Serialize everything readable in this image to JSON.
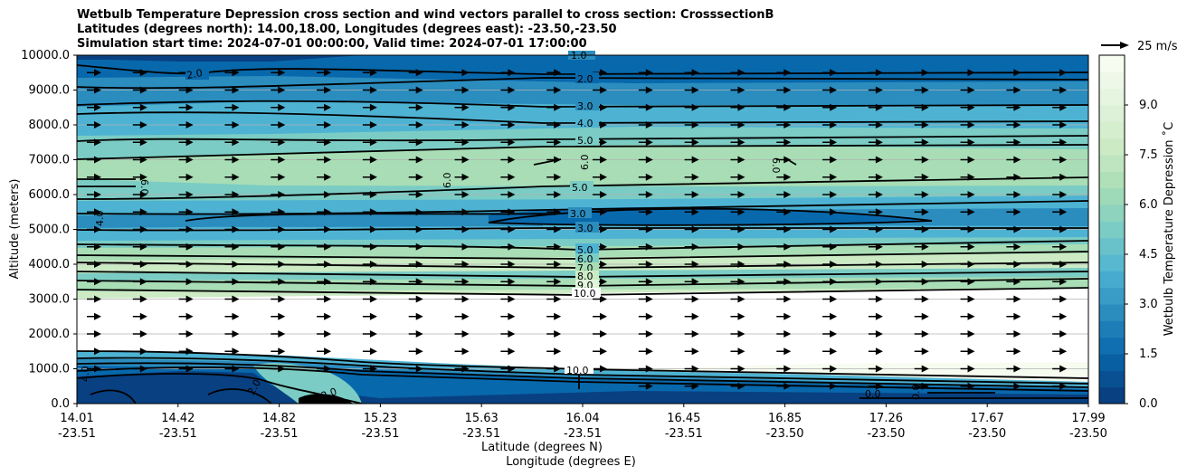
{
  "chart_data": {
    "type": "heatmap",
    "title_lines": [
      "Wetbulb Temperature Depression cross section and wind vectors parallel to cross section: CrosssectionB",
      "Latitudes (degrees north): 14.00,18.00, Longitudes (degrees east): -23.50,-23.50",
      "Simulation start time: 2024-07-01 00:00:00, Valid time: 2024-07-01 17:00:00"
    ],
    "xlabel_lines": [
      "Latitude (degrees N)",
      "Longitude (degrees E)"
    ],
    "ylabel": "Altitude (meters)",
    "colorbar_label": "Wetbulb Temperature Depression ˚C",
    "quiver_key_label": "25 m/s",
    "ylim": [
      0,
      10000
    ],
    "yticks": [
      0,
      1000,
      2000,
      3000,
      4000,
      5000,
      6000,
      7000,
      8000,
      9000,
      10000
    ],
    "ytick_labels": [
      "0.0",
      "1000.0",
      "2000.0",
      "3000.0",
      "4000.0",
      "5000.0",
      "6000.0",
      "7000.0",
      "8000.0",
      "9000.0",
      "10000.0"
    ],
    "xtick_positions": [
      0,
      0.1,
      0.2,
      0.3,
      0.4,
      0.5,
      0.6,
      0.7,
      0.8,
      0.9,
      1.0
    ],
    "xticks_lat": [
      "14.01",
      "14.42",
      "14.82",
      "15.23",
      "15.63",
      "16.04",
      "16.45",
      "16.85",
      "17.26",
      "17.67",
      "17.99"
    ],
    "xticks_lon": [
      "-23.51",
      "-23.51",
      "-23.51",
      "-23.51",
      "-23.51",
      "-23.51",
      "-23.51",
      "-23.50",
      "-23.50",
      "-23.50",
      "-23.50"
    ],
    "colorbar_range": [
      0,
      10.5
    ],
    "colorbar_ticks": [
      0,
      1.5,
      3.0,
      4.5,
      6.0,
      7.5,
      9.0
    ],
    "colorbar_tick_labels": [
      "0.0",
      "1.5",
      "3.0",
      "4.5",
      "6.0",
      "7.5",
      "9.0"
    ],
    "colors": {
      "deep": "#084081",
      "dark": "#0868ac",
      "mid": "#2b8cbe",
      "light_blue": "#4eb3d3",
      "teal": "#7bccc4",
      "mint": "#a8ddb5",
      "pale": "#ccebc5",
      "very_pale": "#e0f3db",
      "white_green": "#f7fcf0"
    },
    "contour_labels": [
      "1.0",
      "2.0",
      "2.0",
      "3.0",
      "4.0",
      "5.0",
      "6.0",
      "6.0",
      "6.0",
      "6.0",
      "5.0",
      "3.0",
      "3.0",
      "4.0",
      "5.0",
      "6.0",
      "7.0",
      "8.0",
      "9.0",
      "10.0",
      "10.0",
      "0.0",
      "0.0",
      "2.0",
      "2.0",
      "4.0"
    ],
    "wind_field": {
      "direction": "parallel-east",
      "notes": "uniform arrows across grid"
    },
    "grid": true
  }
}
